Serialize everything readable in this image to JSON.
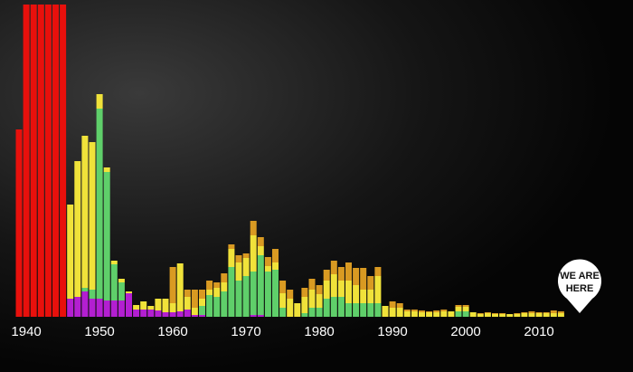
{
  "chart_data": {
    "type": "bar",
    "stacked": true,
    "categories": [
      null,
      "1940",
      null,
      null,
      null,
      null,
      null,
      null,
      null,
      null,
      null,
      "1950",
      null,
      null,
      null,
      null,
      null,
      null,
      null,
      null,
      null,
      "1960",
      null,
      null,
      null,
      null,
      null,
      null,
      null,
      null,
      null,
      "1970",
      null,
      null,
      null,
      null,
      null,
      null,
      null,
      null,
      null,
      "1980",
      null,
      null,
      null,
      null,
      null,
      null,
      null,
      null,
      null,
      "1990",
      null,
      null,
      null,
      null,
      null,
      null,
      null,
      null,
      null,
      "2000",
      null,
      null,
      null,
      null,
      null,
      null,
      null,
      null,
      null,
      "2010",
      null,
      null,
      null
    ],
    "series": [
      {
        "color": "#e8100c",
        "values": [
          207,
          345,
          345,
          345,
          345,
          345,
          345,
          0,
          0,
          0,
          0,
          0,
          0,
          0,
          0,
          0,
          0,
          0,
          0,
          0,
          0,
          0,
          0,
          0,
          0,
          0,
          0,
          0,
          0,
          0,
          0,
          0,
          0,
          0,
          0,
          0,
          0,
          0,
          0,
          0,
          0,
          0,
          0,
          0,
          0,
          0,
          0,
          0,
          0,
          0,
          0,
          0,
          0,
          0,
          0,
          0,
          0,
          0,
          0,
          0,
          0,
          0,
          0,
          0,
          0,
          0,
          0,
          0,
          0,
          0,
          0,
          0,
          0,
          0,
          0
        ]
      },
      {
        "color": "#b31fd1",
        "values": [
          0,
          0,
          0,
          0,
          0,
          0,
          0,
          20,
          22,
          28,
          20,
          20,
          18,
          18,
          18,
          26,
          8,
          8,
          8,
          7,
          5,
          5,
          6,
          8,
          2,
          2,
          0,
          0,
          0,
          0,
          0,
          0,
          2,
          2,
          0,
          0,
          0,
          0,
          0,
          0,
          0,
          0,
          0,
          0,
          0,
          0,
          0,
          0,
          0,
          0,
          0,
          0,
          0,
          0,
          0,
          0,
          0,
          0,
          0,
          0,
          0,
          0,
          0,
          0,
          0,
          0,
          0,
          0,
          0,
          0,
          0,
          0,
          0,
          0,
          0
        ]
      },
      {
        "color": "#5fcf6a",
        "values": [
          0,
          0,
          0,
          0,
          0,
          0,
          0,
          0,
          0,
          4,
          10,
          210,
          142,
          40,
          20,
          0,
          0,
          0,
          0,
          0,
          0,
          0,
          0,
          0,
          0,
          10,
          24,
          22,
          28,
          55,
          40,
          45,
          48,
          66,
          50,
          52,
          10,
          0,
          0,
          4,
          10,
          10,
          20,
          22,
          22,
          15,
          15,
          15,
          15,
          15,
          0,
          0,
          0,
          0,
          0,
          0,
          0,
          0,
          0,
          0,
          6,
          6,
          0,
          0,
          0,
          0,
          0,
          0,
          0,
          0,
          0,
          0,
          0,
          0,
          0
        ]
      },
      {
        "color": "#f0e23a",
        "values": [
          0,
          0,
          0,
          0,
          0,
          0,
          0,
          104,
          150,
          168,
          163,
          16,
          5,
          4,
          4,
          2,
          5,
          9,
          4,
          13,
          15,
          10,
          53,
          14,
          8,
          8,
          6,
          10,
          10,
          20,
          20,
          20,
          40,
          10,
          6,
          8,
          16,
          20,
          15,
          18,
          20,
          15,
          20,
          25,
          18,
          25,
          20,
          15,
          15,
          30,
          12,
          10,
          10,
          6,
          6,
          5,
          5,
          5,
          6,
          6,
          5,
          5,
          5,
          3,
          4,
          3,
          3,
          3,
          3,
          4,
          4,
          4,
          4,
          4,
          4
        ]
      },
      {
        "color": "#d99a22",
        "values": [
          0,
          0,
          0,
          0,
          0,
          0,
          0,
          0,
          0,
          0,
          0,
          0,
          0,
          0,
          0,
          0,
          0,
          0,
          0,
          0,
          0,
          40,
          0,
          8,
          20,
          10,
          10,
          6,
          10,
          5,
          8,
          5,
          16,
          10,
          10,
          15,
          14,
          10,
          0,
          10,
          12,
          10,
          12,
          15,
          15,
          20,
          19,
          24,
          15,
          10,
          0,
          7,
          5,
          2,
          2,
          2,
          1,
          2,
          2,
          0,
          2,
          2,
          0,
          1,
          1,
          1,
          1,
          0,
          1,
          1,
          2,
          1,
          1,
          3,
          2
        ]
      }
    ],
    "ylim": [
      0,
      345
    ],
    "annotation": [
      "WE ARE",
      "HERE"
    ]
  }
}
